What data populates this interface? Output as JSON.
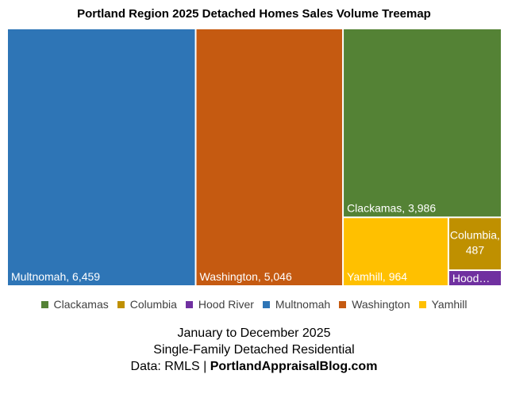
{
  "chart_data": {
    "type": "treemap",
    "title": "Portland Region 2025 Detached Homes Sales Volume Treemap",
    "series": [
      {
        "name": "Multnomah",
        "value": 6459,
        "label": "Multnomah, 6,459",
        "color": "#2E75B6"
      },
      {
        "name": "Washington",
        "value": 5046,
        "label": "Washington, 5,046",
        "color": "#C55A11"
      },
      {
        "name": "Clackamas",
        "value": 3986,
        "label": "Clackamas, 3,986",
        "color": "#548235"
      },
      {
        "name": "Yamhill",
        "value": 964,
        "label": "Yamhill, 964",
        "color": "#FFC000"
      },
      {
        "name": "Columbia",
        "value": 487,
        "label_lines": [
          "Columbia,",
          "487"
        ],
        "color": "#BF9000"
      },
      {
        "name": "Hood River",
        "value": 0,
        "label": "Hood…",
        "color": "#7030A0"
      }
    ],
    "legend": [
      "Clackamas",
      "Columbia",
      "Hood River",
      "Multnomah",
      "Washington",
      "Yamhill"
    ],
    "legend_position": "bottom"
  },
  "footer": {
    "line1": "January to December 2025",
    "line2": "Single-Family Detached Residential",
    "line3_prefix": "Data: RMLS | ",
    "line3_bold": "PortlandAppraisalBlog.com"
  }
}
